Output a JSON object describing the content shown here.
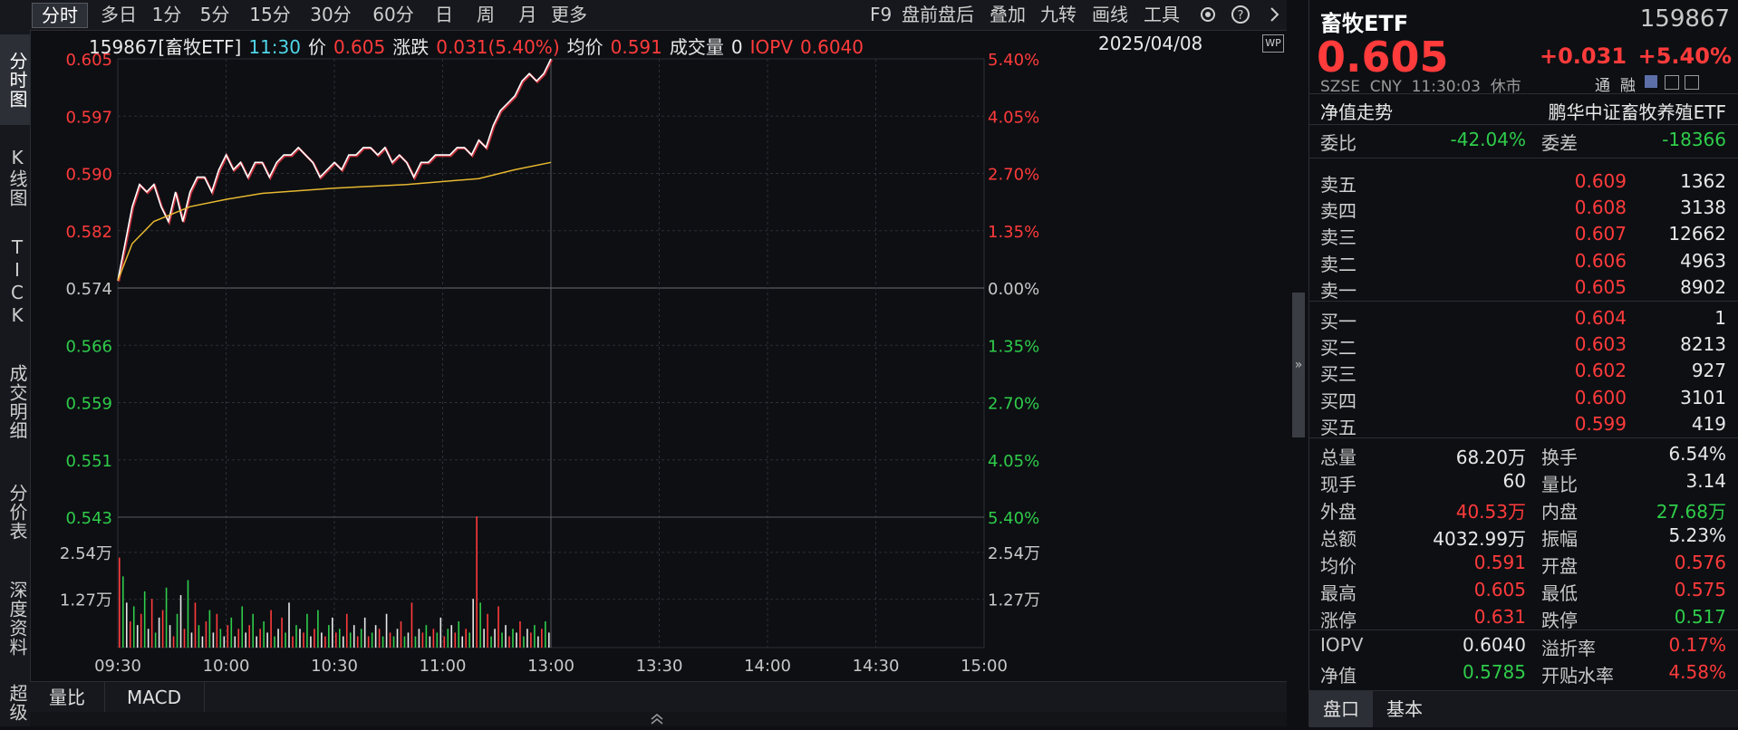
{
  "toolbar": {
    "periods": [
      "分时",
      "多日",
      "1分",
      "5分",
      "15分",
      "30分",
      "60分",
      "日",
      "周",
      "月",
      "更多"
    ],
    "active_period": "分时",
    "tools": [
      "F9",
      "盘前盘后",
      "叠加",
      "九转",
      "画线",
      "工具"
    ],
    "gear_icon": "gear-icon",
    "help_icon": "help-icon",
    "expand_icon": "chevron-right-icon"
  },
  "leftbar": {
    "tabs": [
      "分时图",
      "K线图",
      "TICK",
      "成交明细",
      "分价表",
      "深度资料",
      "超级"
    ],
    "active": "分时图"
  },
  "chart_header": {
    "code_name": "159867[畜牧ETF]",
    "time": "11:30",
    "price_label": "价",
    "price": "0.605",
    "change_label": "涨跌",
    "change": "0.031(5.40%)",
    "avg_label": "均价",
    "avg": "0.591",
    "volume_label": "成交量",
    "volume": "0",
    "iopv_label": "IOPV",
    "iopv": "0.6040",
    "date": "2025/04/08",
    "corner_badge": "WP"
  },
  "colors": {
    "up": "#ff3b3b",
    "down": "#2fcc4a",
    "price_line": "#ffffff",
    "avg_line": "#e8b830",
    "grid": "#2c2f35",
    "cyan": "#4fd5e8"
  },
  "chart_data": {
    "type": "line",
    "left_ticks": [
      "0.605",
      "0.597",
      "0.590",
      "0.582",
      "0.574",
      "0.566",
      "0.559",
      "0.551",
      "0.543"
    ],
    "right_ticks": [
      "5.40%",
      "4.05%",
      "2.70%",
      "1.35%",
      "0.00%",
      "1.35%",
      "2.70%",
      "4.05%",
      "5.40%"
    ],
    "ylim": [
      0.543,
      0.605
    ],
    "base_price": 0.574,
    "x_tick_labels": [
      "09:30",
      "10:00",
      "10:30",
      "11:00",
      "13:00",
      "13:30",
      "14:00",
      "14:30",
      "15:00"
    ],
    "x_minutes_total": 240,
    "volume_ticks": [
      "2.54万",
      "1.27万"
    ],
    "volume_max": 2.54,
    "price_series": {
      "minutes": [
        0,
        2,
        4,
        6,
        8,
        10,
        12,
        14,
        16,
        18,
        20,
        22,
        24,
        26,
        28,
        30,
        32,
        34,
        36,
        38,
        40,
        42,
        44,
        46,
        48,
        50,
        52,
        54,
        56,
        58,
        60,
        62,
        64,
        66,
        68,
        70,
        72,
        74,
        76,
        78,
        80,
        82,
        84,
        86,
        88,
        90,
        92,
        94,
        96,
        98,
        100,
        102,
        104,
        106,
        108,
        110,
        112,
        114,
        116,
        118,
        120
      ],
      "prices": [
        0.575,
        0.58,
        0.585,
        0.588,
        0.587,
        0.588,
        0.585,
        0.583,
        0.587,
        0.583,
        0.587,
        0.589,
        0.589,
        0.587,
        0.59,
        0.592,
        0.59,
        0.591,
        0.589,
        0.591,
        0.591,
        0.589,
        0.591,
        0.592,
        0.592,
        0.593,
        0.592,
        0.591,
        0.589,
        0.59,
        0.591,
        0.59,
        0.592,
        0.592,
        0.593,
        0.593,
        0.592,
        0.593,
        0.591,
        0.592,
        0.591,
        0.589,
        0.591,
        0.591,
        0.592,
        0.592,
        0.592,
        0.593,
        0.593,
        0.592,
        0.594,
        0.593,
        0.596,
        0.598,
        0.599,
        0.6,
        0.602,
        0.603,
        0.602,
        0.603,
        0.605
      ]
    },
    "avg_series": {
      "minutes": [
        0,
        4,
        10,
        20,
        30,
        40,
        60,
        80,
        100,
        110,
        120
      ],
      "prices": [
        0.575,
        0.58,
        0.583,
        0.585,
        0.586,
        0.5868,
        0.5875,
        0.588,
        0.5888,
        0.59,
        0.591
      ]
    },
    "volume_series": {
      "step_minutes": 1,
      "values": [
        2.4,
        1.9,
        1.2,
        0.7,
        1.1,
        0.6,
        0.9,
        1.5,
        0.5,
        1.3,
        0.4,
        0.8,
        1.0,
        1.6,
        0.6,
        0.3,
        0.9,
        1.4,
        0.5,
        1.8,
        0.4,
        1.2,
        0.6,
        0.3,
        0.7,
        1.0,
        0.4,
        0.9,
        0.5,
        0.3,
        0.6,
        0.8,
        0.3,
        0.5,
        1.1,
        0.4,
        0.6,
        0.9,
        0.3,
        0.5,
        0.7,
        0.4,
        1.0,
        0.3,
        0.5,
        0.8,
        0.4,
        1.2,
        0.3,
        0.6,
        0.5,
        0.4,
        0.9,
        0.3,
        0.5,
        1.0,
        0.4,
        0.3,
        0.6,
        0.8,
        0.4,
        0.5,
        0.3,
        0.9,
        0.4,
        0.6,
        0.3,
        0.5,
        0.8,
        0.3,
        0.4,
        0.6,
        0.5,
        0.3,
        0.9,
        0.4,
        0.3,
        0.5,
        0.7,
        0.3,
        0.4,
        1.2,
        0.3,
        0.5,
        0.4,
        0.6,
        0.3,
        0.5,
        0.4,
        0.8,
        0.3,
        0.5,
        0.6,
        0.4,
        0.7,
        0.3,
        0.5,
        0.4,
        1.3,
        3.5,
        1.2,
        0.5,
        0.9,
        0.3,
        0.5,
        1.1,
        0.4,
        0.6,
        0.3,
        0.5,
        0.4,
        0.7,
        0.3,
        0.5,
        0.4,
        0.6,
        0.3,
        0.5,
        0.7,
        0.4
      ],
      "colors": "rgw"
    }
  },
  "bottom_tabs": [
    "量比",
    "MACD"
  ],
  "right_panel": {
    "name": "畜牧ETF",
    "code": "159867",
    "price": "0.605",
    "change": "+0.031",
    "change_pct": "+5.40%",
    "exchange": "SZSE",
    "currency": "CNY",
    "timestamp": "11:30:03",
    "status": "休市",
    "tags": [
      "通",
      "融"
    ],
    "nav_label": "净值走势",
    "fund_name": "鹏华中证畜牧养殖ETF",
    "weibi_label": "委比",
    "weibi": "-42.04%",
    "weicha_label": "委差",
    "weicha": "-18366",
    "asks": [
      {
        "label": "卖五",
        "price": "0.609",
        "vol": "1362"
      },
      {
        "label": "卖四",
        "price": "0.608",
        "vol": "3138"
      },
      {
        "label": "卖三",
        "price": "0.607",
        "vol": "12662"
      },
      {
        "label": "卖二",
        "price": "0.606",
        "vol": "4963"
      },
      {
        "label": "卖一",
        "price": "0.605",
        "vol": "8902"
      }
    ],
    "bids": [
      {
        "label": "买一",
        "price": "0.604",
        "vol": "1"
      },
      {
        "label": "买二",
        "price": "0.603",
        "vol": "8213"
      },
      {
        "label": "买三",
        "price": "0.602",
        "vol": "927"
      },
      {
        "label": "买四",
        "price": "0.600",
        "vol": "3101"
      },
      {
        "label": "买五",
        "price": "0.599",
        "vol": "419"
      }
    ],
    "stats": [
      {
        "l1": "总量",
        "v1": "68.20万",
        "c1": "white",
        "l2": "换手",
        "v2": "6.54%",
        "c2": "white"
      },
      {
        "l1": "现手",
        "v1": "60",
        "c1": "white",
        "l2": "量比",
        "v2": "3.14",
        "c2": "white"
      },
      {
        "l1": "外盘",
        "v1": "40.53万",
        "c1": "red",
        "l2": "内盘",
        "v2": "27.68万",
        "c2": "green"
      },
      {
        "l1": "总额",
        "v1": "4032.99万",
        "c1": "white",
        "l2": "振幅",
        "v2": "5.23%",
        "c2": "white"
      },
      {
        "l1": "均价",
        "v1": "0.591",
        "c1": "red",
        "l2": "开盘",
        "v2": "0.576",
        "c2": "red"
      },
      {
        "l1": "最高",
        "v1": "0.605",
        "c1": "red",
        "l2": "最低",
        "v2": "0.575",
        "c2": "red"
      },
      {
        "l1": "涨停",
        "v1": "0.631",
        "c1": "red",
        "l2": "跌停",
        "v2": "0.517",
        "c2": "green"
      }
    ],
    "iopv_rows": [
      {
        "l1": "IOPV",
        "v1": "0.6040",
        "c1": "white",
        "l2": "溢折率",
        "v2": "0.17%",
        "c2": "red"
      },
      {
        "l1": "净值",
        "v1": "0.5785",
        "c1": "green",
        "l2": "开贴水率",
        "v2": "4.58%",
        "c2": "red"
      }
    ],
    "tabs": [
      "盘口",
      "基本"
    ],
    "active_tab": "盘口"
  }
}
